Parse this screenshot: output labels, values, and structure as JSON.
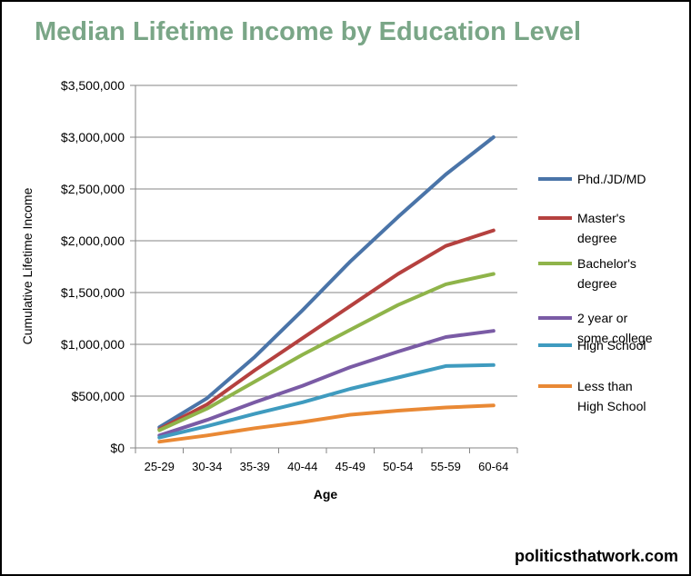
{
  "source_credit": "politicsthatwork.com",
  "chart_data": {
    "type": "line",
    "title": "Median Lifetime Income by Education Level",
    "xlabel": "Age",
    "ylabel": "Cumulative Lifetime Income",
    "categories": [
      "25-29",
      "30-34",
      "35-39",
      "40-44",
      "45-49",
      "50-54",
      "55-59",
      "60-64"
    ],
    "ylim": [
      0,
      3500000
    ],
    "yticks": [
      0,
      500000,
      1000000,
      1500000,
      2000000,
      2500000,
      3000000,
      3500000
    ],
    "ytick_labels": [
      "$0",
      "$500,000",
      "$1,000,000",
      "$1,500,000",
      "$2,000,000",
      "$2,500,000",
      "$3,000,000",
      "$3,500,000"
    ],
    "grid": true,
    "legend_position": "right",
    "series": [
      {
        "name": "Phd./JD/MD",
        "legend_lines": [
          "Phd./JD/MD"
        ],
        "color": "#4a74a8",
        "values": [
          200000,
          480000,
          880000,
          1330000,
          1800000,
          2230000,
          2640000,
          3000000
        ]
      },
      {
        "name": "Master's degree",
        "legend_lines": [
          "Master's",
          "degree"
        ],
        "color": "#b5413f",
        "values": [
          180000,
          420000,
          750000,
          1060000,
          1370000,
          1680000,
          1950000,
          2100000
        ]
      },
      {
        "name": "Bachelor's degree",
        "legend_lines": [
          "Bachelor's",
          "degree"
        ],
        "color": "#8fb44a",
        "values": [
          170000,
          380000,
          640000,
          900000,
          1140000,
          1380000,
          1580000,
          1680000
        ]
      },
      {
        "name": "2 year or some college",
        "legend_lines": [
          "2 year or",
          "some college"
        ],
        "color": "#7a5ba5",
        "values": [
          120000,
          270000,
          440000,
          600000,
          780000,
          930000,
          1070000,
          1130000
        ]
      },
      {
        "name": "High School",
        "legend_lines": [
          "High School"
        ],
        "color": "#3f9bbf",
        "values": [
          100000,
          210000,
          330000,
          440000,
          570000,
          680000,
          790000,
          800000
        ]
      },
      {
        "name": "Less than High School",
        "legend_lines": [
          "Less than",
          "High School"
        ],
        "color": "#e98935",
        "values": [
          60000,
          120000,
          190000,
          250000,
          320000,
          360000,
          390000,
          410000
        ]
      }
    ]
  }
}
